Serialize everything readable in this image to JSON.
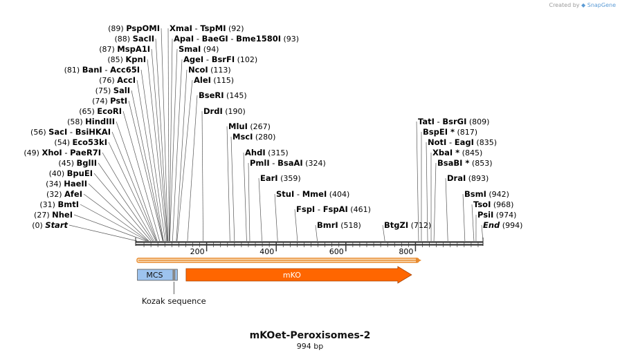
{
  "credit": {
    "prefix": "Created by",
    "brand": "SnapGene"
  },
  "construct": {
    "name": "mKOet-Peroxisomes-2",
    "length": "994 bp",
    "total_bp": 994
  },
  "axis": {
    "ticks": [
      {
        "bp": 200,
        "label": "200"
      },
      {
        "bp": 400,
        "label": "400"
      },
      {
        "bp": 600,
        "label": "600"
      },
      {
        "bp": 800,
        "label": "800"
      }
    ]
  },
  "orf": {
    "start_bp": 0,
    "end_bp": 825,
    "color": "#e88a2e"
  },
  "features": [
    {
      "name": "MCS",
      "label": "MCS",
      "start_bp": 27,
      "end_bp": 112,
      "color": "#9dc3ee"
    },
    {
      "name": "mKO",
      "label": "mKO",
      "start_bp": 141,
      "end_bp": 789,
      "color": "#ff6600"
    }
  ],
  "annotation": {
    "label": "Kozak sequence",
    "bp": 112
  },
  "left_sites": [
    {
      "pos": "(89)",
      "names": [
        "PspOMI"
      ],
      "bp": 89
    },
    {
      "pos": "(88)",
      "names": [
        "SacII"
      ],
      "bp": 88
    },
    {
      "pos": "(87)",
      "names": [
        "MspA1I"
      ],
      "bp": 87
    },
    {
      "pos": "(85)",
      "names": [
        "KpnI"
      ],
      "bp": 85
    },
    {
      "pos": "(81)",
      "names": [
        "BanI",
        "Acc65I"
      ],
      "bp": 81
    },
    {
      "pos": "(76)",
      "names": [
        "AccI"
      ],
      "bp": 76
    },
    {
      "pos": "(75)",
      "names": [
        "SalI"
      ],
      "bp": 75
    },
    {
      "pos": "(74)",
      "names": [
        "PstI"
      ],
      "bp": 74
    },
    {
      "pos": "(65)",
      "names": [
        "EcoRI"
      ],
      "bp": 65
    },
    {
      "pos": "(58)",
      "names": [
        "HindIII"
      ],
      "bp": 58
    },
    {
      "pos": "(56)",
      "names": [
        "SacI",
        "BsiHKAI"
      ],
      "bp": 56
    },
    {
      "pos": "(54)",
      "names": [
        "Eco53kI"
      ],
      "bp": 54
    },
    {
      "pos": "(49)",
      "names": [
        "XhoI",
        "PaeR7I"
      ],
      "bp": 49
    },
    {
      "pos": "(45)",
      "names": [
        "BglII"
      ],
      "bp": 45
    },
    {
      "pos": "(40)",
      "names": [
        "BpuEI"
      ],
      "bp": 40
    },
    {
      "pos": "(34)",
      "names": [
        "HaeII"
      ],
      "bp": 34
    },
    {
      "pos": "(32)",
      "names": [
        "AfeI"
      ],
      "bp": 32
    },
    {
      "pos": "(31)",
      "names": [
        "BmtI"
      ],
      "bp": 31
    },
    {
      "pos": "(27)",
      "names": [
        "NheI"
      ],
      "bp": 27
    },
    {
      "pos": "(0)",
      "names": [
        "Start"
      ],
      "bp": 0,
      "italic": true
    }
  ],
  "right_sites": [
    {
      "pos": "(92)",
      "names": [
        "XmaI",
        "TspMI"
      ],
      "bp": 92
    },
    {
      "pos": "(93)",
      "names": [
        "ApaI",
        "BaeGI",
        "Bme1580I"
      ],
      "bp": 93
    },
    {
      "pos": "(94)",
      "names": [
        "SmaI"
      ],
      "bp": 94
    },
    {
      "pos": "(102)",
      "names": [
        "AgeI",
        "BsrFI"
      ],
      "bp": 102
    },
    {
      "pos": "(113)",
      "names": [
        "NcoI"
      ],
      "bp": 113
    },
    {
      "pos": "(115)",
      "names": [
        "AleI"
      ],
      "bp": 115
    },
    {
      "pos": "(145)",
      "names": [
        "BseRI"
      ],
      "bp": 145
    },
    {
      "pos": "(190)",
      "names": [
        "DrdI"
      ],
      "bp": 190
    },
    {
      "pos": "(267)",
      "names": [
        "MluI"
      ],
      "bp": 267
    },
    {
      "pos": "(280)",
      "names": [
        "MscI"
      ],
      "bp": 280
    },
    {
      "pos": "(315)",
      "names": [
        "AhdI"
      ],
      "bp": 315
    },
    {
      "pos": "(324)",
      "names": [
        "PmlI",
        "BsaAI"
      ],
      "bp": 324
    },
    {
      "pos": "(359)",
      "names": [
        "EarI"
      ],
      "bp": 359
    },
    {
      "pos": "(404)",
      "names": [
        "StuI",
        "MmeI"
      ],
      "bp": 404
    },
    {
      "pos": "(461)",
      "names": [
        "FspI",
        "FspAI"
      ],
      "bp": 461
    },
    {
      "pos": "(518)",
      "names": [
        "BmrI"
      ],
      "bp": 518
    },
    {
      "pos": "(712)",
      "names": [
        "BtgZI"
      ],
      "bp": 712
    },
    {
      "pos": "(809)",
      "names": [
        "TatI",
        "BsrGI"
      ],
      "bp": 809
    },
    {
      "pos": "(817)",
      "names": [
        "BspEI *"
      ],
      "bp": 817
    },
    {
      "pos": "(835)",
      "names": [
        "NotI",
        "EagI"
      ],
      "bp": 835
    },
    {
      "pos": "(845)",
      "names": [
        "XbaI *"
      ],
      "bp": 845
    },
    {
      "pos": "(853)",
      "names": [
        "BsaBI *"
      ],
      "bp": 853
    },
    {
      "pos": "(893)",
      "names": [
        "DraI"
      ],
      "bp": 893
    },
    {
      "pos": "(942)",
      "names": [
        "BsmI"
      ],
      "bp": 942
    },
    {
      "pos": "(968)",
      "names": [
        "TsoI"
      ],
      "bp": 968
    },
    {
      "pos": "(974)",
      "names": [
        "PsiI"
      ],
      "bp": 974
    },
    {
      "pos": "(994)",
      "names": [
        "End"
      ],
      "bp": 994,
      "italic": true
    }
  ]
}
